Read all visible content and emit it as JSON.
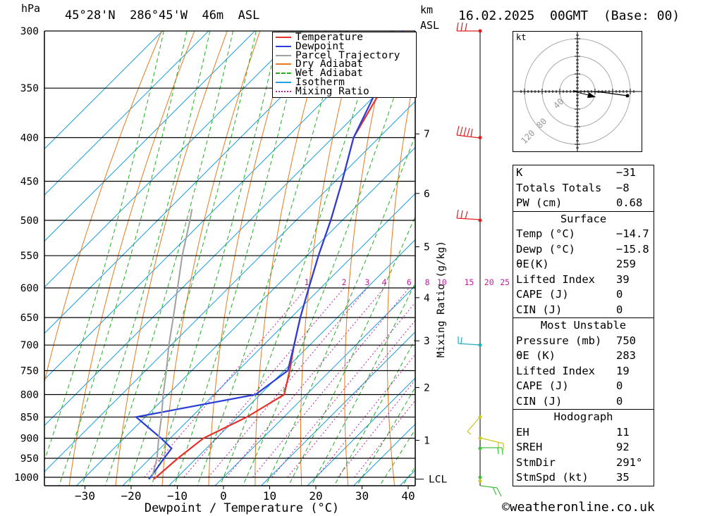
{
  "header": {
    "pressure_unit": "hPa",
    "location": "45°28'N  286°45'W  46m  ASL",
    "height_unit": "km",
    "height_ref": "ASL",
    "datetime": "16.02.2025  00GMT  (Base: 00)"
  },
  "legend": [
    {
      "label": "Temperature",
      "color": "#e8312a"
    },
    {
      "label": "Dewpoint",
      "color": "#2a3fd8"
    },
    {
      "label": "Parcel Trajectory",
      "color": "#a0a0a0"
    },
    {
      "label": "Dry Adiabat",
      "color": "#e8791e"
    },
    {
      "label": "Wet Adiabat",
      "color": "#20b020"
    },
    {
      "label": "Isotherm",
      "color": "#1fa0e0"
    },
    {
      "label": "Mixing Ratio",
      "color": "#c020a0"
    }
  ],
  "chart_data": {
    "type": "line",
    "xlabel": "Dewpoint / Temperature (°C)",
    "ylabel": "hPa",
    "x_ticks": [
      -30,
      -20,
      -10,
      0,
      10,
      20,
      30,
      40
    ],
    "x_tick_labels": [
      "−30",
      "−20",
      "−10",
      "0",
      "10",
      "20",
      "30",
      "40"
    ],
    "pressure_levels": [
      300,
      350,
      400,
      450,
      500,
      550,
      600,
      650,
      700,
      750,
      800,
      850,
      900,
      950,
      1000
    ],
    "height_axis": {
      "labels": [
        "7",
        "6",
        "5",
        "4",
        "3",
        "2",
        "1"
      ],
      "pressures": [
        396,
        465,
        537,
        616,
        692,
        785,
        905
      ],
      "lcl_label": "LCL",
      "lcl_pressure": 1005
    },
    "mixing_ratio_label": "Mixing Ratio (g/kg)",
    "mixing_ratios": [
      "1",
      "2",
      "3",
      "4",
      "6",
      "8",
      "10",
      "15",
      "20",
      "25"
    ],
    "mixing_ratio_values": [
      1,
      2,
      3,
      4,
      6,
      8,
      10,
      15,
      20,
      25
    ],
    "skew": 1,
    "series": [
      {
        "name": "Temperature",
        "color": "#e8312a",
        "points": [
          [
            1005,
            -14.7
          ],
          [
            1000,
            -14.6
          ],
          [
            950,
            -14.0
          ],
          [
            900,
            -12.8
          ],
          [
            850,
            -8.0
          ],
          [
            800,
            -4.8
          ],
          [
            750,
            -8.8
          ],
          [
            700,
            -13.4
          ],
          [
            650,
            -18.0
          ],
          [
            600,
            -22.6
          ],
          [
            550,
            -27.5
          ],
          [
            500,
            -32.5
          ],
          [
            450,
            -38.5
          ],
          [
            400,
            -45.5
          ],
          [
            350,
            -50.0
          ],
          [
            300,
            -57.5
          ]
        ]
      },
      {
        "name": "Dewpoint",
        "color": "#2a3fd8",
        "points": [
          [
            1005,
            -15.8
          ],
          [
            1000,
            -15.8
          ],
          [
            950,
            -17.0
          ],
          [
            925,
            -17.5
          ],
          [
            900,
            -22.0
          ],
          [
            850,
            -32.0
          ],
          [
            800,
            -11.0
          ],
          [
            750,
            -9.2
          ],
          [
            700,
            -13.4
          ],
          [
            650,
            -18.0
          ],
          [
            600,
            -22.6
          ],
          [
            550,
            -27.5
          ],
          [
            500,
            -32.5
          ],
          [
            450,
            -38.5
          ],
          [
            400,
            -45.5
          ],
          [
            350,
            -51.0
          ],
          [
            300,
            -58.0
          ]
        ]
      },
      {
        "name": "Parcel Trajectory",
        "color": "#a0a0a0",
        "points": [
          [
            1000,
            -15.5
          ],
          [
            950,
            -18.5
          ],
          [
            900,
            -22.5
          ],
          [
            850,
            -26.5
          ],
          [
            800,
            -31.0
          ],
          [
            750,
            -35.5
          ],
          [
            700,
            -40.5
          ],
          [
            650,
            -45.5
          ],
          [
            600,
            -51.0
          ],
          [
            550,
            -57.0
          ],
          [
            500,
            -63.0
          ],
          [
            485,
            -65.0
          ]
        ]
      }
    ]
  },
  "hodograph": {
    "unit": "kt",
    "ring_labels": [
      "40",
      "80",
      "120"
    ]
  },
  "indices": {
    "k_label": "K",
    "k_value": "−31",
    "tt_label": "Totals Totals",
    "tt_value": "−8",
    "pw_label": "PW (cm)",
    "pw_value": "0.68"
  },
  "surface": {
    "title": "Surface",
    "temp_label": "Temp (°C)",
    "temp_value": "−14.7",
    "dewp_label": "Dewp (°C)",
    "dewp_value": "−15.8",
    "theta_label": "θE(K)",
    "theta_value": "259",
    "li_label": "Lifted Index",
    "li_value": "39",
    "cape_label": "CAPE (J)",
    "cape_value": "0",
    "cin_label": "CIN (J)",
    "cin_value": "0"
  },
  "most_unstable": {
    "title": "Most Unstable",
    "pressure_label": "Pressure (mb)",
    "pressure_value": "750",
    "theta_label": "θE (K)",
    "theta_value": "283",
    "li_label": "Lifted Index",
    "li_value": "19",
    "cape_label": "CAPE (J)",
    "cape_value": "0",
    "cin_label": "CIN (J)",
    "cin_value": "0"
  },
  "hodograph_table": {
    "title": "Hodograph",
    "eh_label": "EH",
    "eh_value": "11",
    "sreh_label": "SREH",
    "sreh_value": "92",
    "stmdir_label": "StmDir",
    "stmdir_value": "291°",
    "stmspd_label": "StmSpd (kt)",
    "stmspd_value": "35"
  },
  "credit": "©weatheronline.co.uk",
  "colors": {
    "grid": "#000000",
    "isotherm": "#1fa0e0",
    "dry_adiabat": "#e8791e",
    "wet_adiabat": "#20b020",
    "mixing_ratio": "#c020a0",
    "wind_upper": "#e02020",
    "wind_mid": "#20b0c0",
    "wind_low": "#c8c820",
    "wind_sfc": "#40c040"
  }
}
